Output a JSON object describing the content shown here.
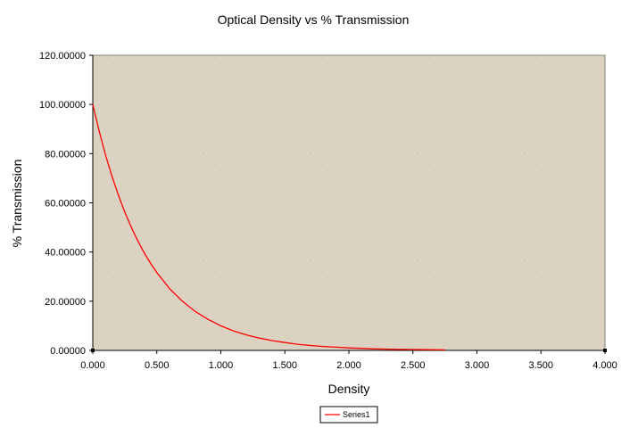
{
  "chart_data": {
    "type": "line",
    "title": "Optical Density vs % Transmission",
    "xlabel": "Density",
    "ylabel": "% Transmission",
    "xlim": [
      0,
      4
    ],
    "ylim": [
      0,
      120
    ],
    "x_ticks": [
      "0.000",
      "0.500",
      "1.000",
      "1.500",
      "2.000",
      "2.500",
      "3.000",
      "3.500",
      "4.000"
    ],
    "y_ticks": [
      "0.00000",
      "20.00000",
      "40.00000",
      "60.00000",
      "80.00000",
      "100.00000",
      "120.00000"
    ],
    "grid": false,
    "legend_position": "bottom",
    "plot_background": "#dcd2c2",
    "series": [
      {
        "name": "Series1",
        "color": "#ff0000",
        "x": [
          0,
          0.05,
          0.1,
          0.15,
          0.2,
          0.25,
          0.3,
          0.35,
          0.4,
          0.45,
          0.5,
          0.6,
          0.7,
          0.8,
          0.9,
          1.0,
          1.1,
          1.2,
          1.3,
          1.4,
          1.5,
          1.6,
          1.7,
          1.8,
          1.9,
          2.0,
          2.2,
          2.4,
          2.6,
          2.75
        ],
        "y": [
          100,
          89.1,
          79.4,
          70.8,
          63.1,
          56.2,
          50.1,
          44.7,
          39.8,
          35.5,
          31.6,
          25.1,
          20.0,
          15.8,
          12.6,
          10.0,
          7.9,
          6.3,
          5.0,
          4.0,
          3.2,
          2.5,
          2.0,
          1.6,
          1.3,
          1.0,
          0.6,
          0.4,
          0.3,
          0.2
        ]
      }
    ]
  }
}
